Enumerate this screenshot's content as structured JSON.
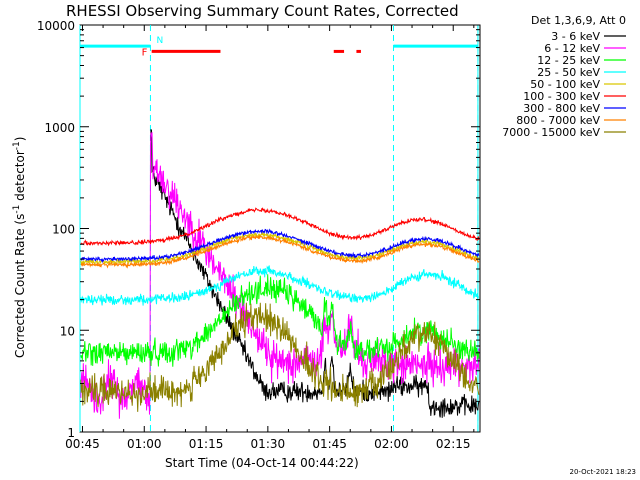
{
  "chart_data": {
    "type": "line",
    "title": "RHESSI Observing Summary Count Rates, Corrected",
    "xlabel": "Start Time (04-Oct-14 00:44:22)",
    "ylabel_main": "Corrected Count Rate (s",
    "ylabel_sup1": "-1",
    "ylabel_mid": " detector",
    "ylabel_sup2": "-1",
    "ylabel_end": ")",
    "y_scale": "log",
    "ylim": [
      1,
      10000
    ],
    "xlim_minutes": [
      44.4,
      141.5
    ],
    "x_ticks": [
      {
        "t": 45,
        "label": "00:45"
      },
      {
        "t": 60,
        "label": "01:00"
      },
      {
        "t": 75,
        "label": "01:15"
      },
      {
        "t": 90,
        "label": "01:30"
      },
      {
        "t": 105,
        "label": "01:45"
      },
      {
        "t": 120,
        "label": "02:00"
      },
      {
        "t": 135,
        "label": "02:15"
      }
    ],
    "y_ticks": [
      {
        "v": 1,
        "label": "1"
      },
      {
        "v": 10,
        "label": "10"
      },
      {
        "v": 100,
        "label": "100"
      },
      {
        "v": 1000,
        "label": "1000"
      },
      {
        "v": 10000,
        "label": "10000"
      }
    ],
    "legend_title": "Det 1,3,6,9, Att 0",
    "legend_position": "outside-right",
    "series": [
      {
        "name": "3 - 6 keV",
        "color": "#000000"
      },
      {
        "name": "6 - 12 keV",
        "color": "#ff00ff"
      },
      {
        "name": "12 - 25 keV",
        "color": "#00ff00"
      },
      {
        "name": "25 - 50 keV",
        "color": "#00ffff"
      },
      {
        "name": "50 - 100 keV",
        "color": "#d9c800"
      },
      {
        "name": "100 - 300 keV",
        "color": "#ff0000"
      },
      {
        "name": "300 - 800 keV",
        "color": "#0000ff"
      },
      {
        "name": "800 - 7000 keV",
        "color": "#ff8000"
      },
      {
        "name": "7000 - 15000 keV",
        "color": "#8b8000"
      }
    ],
    "night_intervals": [
      [
        44.4,
        61.5
      ],
      [
        120.5,
        141.0
      ]
    ],
    "flare_flag_label": "F",
    "flare_intervals": [
      [
        61.8,
        78.5
      ],
      [
        106.0,
        108.5
      ],
      [
        111.5,
        112.6
      ]
    ],
    "saa_flag_label": "N",
    "footer_timestamp": "20-Oct-2021 18:23"
  }
}
